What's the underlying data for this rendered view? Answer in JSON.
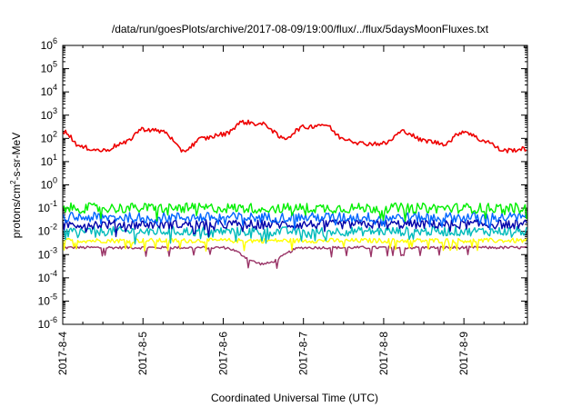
{
  "chart_data": {
    "type": "line",
    "title": "/data/run/goesPlots/archive/2017-08-09/19:00/flux/../flux/5daysMoonFluxes.txt",
    "xlabel": "Coordinated Universal Time (UTC)",
    "ylabel": "protons/cm²-s-sr-MeV",
    "ylabel_parts": {
      "base": "protons/cm",
      "sup": "2",
      "rest": "-s-sr-MeV"
    },
    "y_scale": "log",
    "ylim": [
      1e-06,
      1000000.0
    ],
    "y_ticks": [
      {
        "base": "10",
        "exp": "-6",
        "value": 1e-06
      },
      {
        "base": "10",
        "exp": "-5",
        "value": 1e-05
      },
      {
        "base": "10",
        "exp": "-4",
        "value": 0.0001
      },
      {
        "base": "10",
        "exp": "-3",
        "value": 0.001
      },
      {
        "base": "10",
        "exp": "-2",
        "value": 0.01
      },
      {
        "base": "10",
        "exp": "-1",
        "value": 0.1
      },
      {
        "base": "10",
        "exp": "0",
        "value": 1
      },
      {
        "base": "10",
        "exp": "1",
        "value": 10
      },
      {
        "base": "10",
        "exp": "2",
        "value": 100
      },
      {
        "base": "10",
        "exp": "3",
        "value": 1000
      },
      {
        "base": "10",
        "exp": "4",
        "value": 10000
      },
      {
        "base": "10",
        "exp": "5",
        "value": 100000
      },
      {
        "base": "10",
        "exp": "6",
        "value": 1000000
      }
    ],
    "xlim": [
      "2017-08-04 00:00",
      "2017-08-09 19:00"
    ],
    "x_ticks": [
      "2017-8-4",
      "2017-8-5",
      "2017-8-6",
      "2017-8-7",
      "2017-8-8",
      "2017-8-9"
    ],
    "grid": false,
    "legend": "none",
    "series": [
      {
        "color": "#ee0000",
        "x": [
          "2017-08-04 00:00",
          "2017-08-04 06:00",
          "2017-08-04 12:00",
          "2017-08-04 18:00",
          "2017-08-05 00:00",
          "2017-08-05 06:00",
          "2017-08-05 12:00",
          "2017-08-05 18:00",
          "2017-08-06 00:00",
          "2017-08-06 06:00",
          "2017-08-06 12:00",
          "2017-08-06 18:00",
          "2017-08-07 00:00",
          "2017-08-07 06:00",
          "2017-08-07 12:00",
          "2017-08-07 18:00",
          "2017-08-08 00:00",
          "2017-08-08 06:00",
          "2017-08-08 12:00",
          "2017-08-08 18:00",
          "2017-08-09 00:00",
          "2017-08-09 06:00",
          "2017-08-09 12:00",
          "2017-08-09 19:00"
        ],
        "values": [
          200,
          40,
          30,
          60,
          250,
          200,
          30,
          100,
          150,
          500,
          400,
          100,
          300,
          400,
          100,
          60,
          60,
          200,
          80,
          60,
          200,
          80,
          30,
          35
        ]
      },
      {
        "color": "#00ee00",
        "x": [
          "2017-08-04 00:00",
          "2017-08-05 00:00",
          "2017-08-06 00:00",
          "2017-08-07 00:00",
          "2017-08-08 00:00",
          "2017-08-09 00:00",
          "2017-08-09 19:00"
        ],
        "values": [
          0.1,
          0.1,
          0.1,
          0.1,
          0.1,
          0.1,
          0.1
        ]
      },
      {
        "color": "#0066ff",
        "x": [
          "2017-08-04 00:00",
          "2017-08-05 00:00",
          "2017-08-06 00:00",
          "2017-08-07 00:00",
          "2017-08-08 00:00",
          "2017-08-09 00:00",
          "2017-08-09 19:00"
        ],
        "values": [
          0.04,
          0.04,
          0.04,
          0.04,
          0.04,
          0.04,
          0.04
        ]
      },
      {
        "color": "#0000aa",
        "x": [
          "2017-08-04 00:00",
          "2017-08-05 00:00",
          "2017-08-06 00:00",
          "2017-08-07 00:00",
          "2017-08-08 00:00",
          "2017-08-09 00:00",
          "2017-08-09 19:00"
        ],
        "values": [
          0.02,
          0.02,
          0.02,
          0.02,
          0.02,
          0.02,
          0.02
        ]
      },
      {
        "color": "#00bbbb",
        "x": [
          "2017-08-04 00:00",
          "2017-08-05 00:00",
          "2017-08-06 00:00",
          "2017-08-07 00:00",
          "2017-08-08 00:00",
          "2017-08-09 00:00",
          "2017-08-09 19:00"
        ],
        "values": [
          0.01,
          0.01,
          0.01,
          0.01,
          0.01,
          0.01,
          0.01
        ]
      },
      {
        "color": "#ffff00",
        "x": [
          "2017-08-04 00:00",
          "2017-08-05 00:00",
          "2017-08-06 00:00",
          "2017-08-07 00:00",
          "2017-08-08 00:00",
          "2017-08-09 00:00",
          "2017-08-09 19:00"
        ],
        "values": [
          0.004,
          0.004,
          0.004,
          0.004,
          0.004,
          0.004,
          0.004
        ]
      },
      {
        "color": "#993366",
        "x": [
          "2017-08-04 00:00",
          "2017-08-05 00:00",
          "2017-08-06 00:00",
          "2017-08-06 12:00",
          "2017-08-07 00:00",
          "2017-08-08 00:00",
          "2017-08-09 00:00",
          "2017-08-09 19:00"
        ],
        "values": [
          0.002,
          0.002,
          0.002,
          0.0004,
          0.002,
          0.002,
          0.002,
          0.002
        ]
      }
    ]
  }
}
